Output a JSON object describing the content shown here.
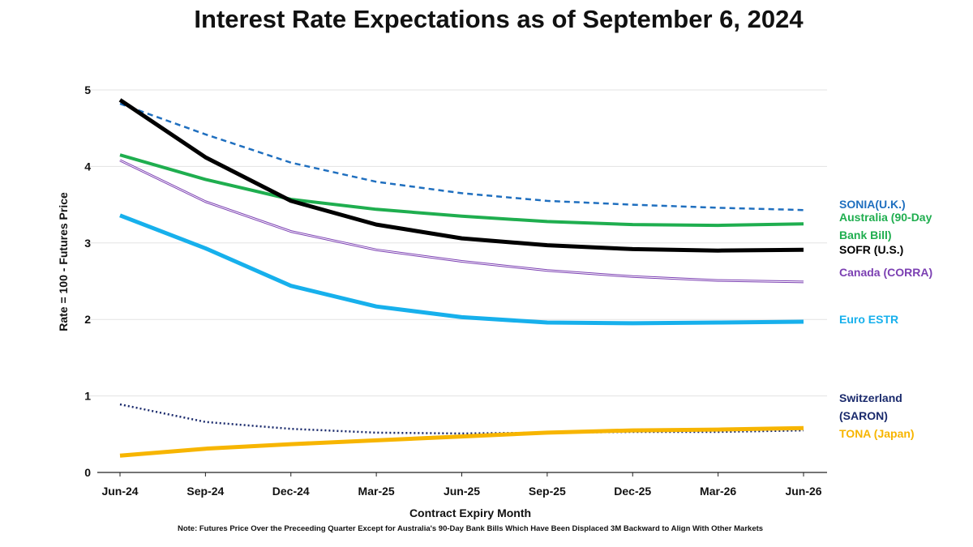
{
  "chart_data": {
    "type": "line",
    "title": "Interest Rate Expectations as of September 6, 2024",
    "xlabel": "Contract Expiry Month",
    "ylabel": "Rate = 100 - Futures Price",
    "note": "Note: Futures Price Over the Preceeding Quarter Except for Australia's 90-Day Bank Bills Which Have Been Displaced 3M Backward to Align With Other Markets",
    "categories": [
      "Jun-24",
      "Sep-24",
      "Dec-24",
      "Mar-25",
      "Jun-25",
      "Sep-25",
      "Dec-25",
      "Mar-26",
      "Jun-26"
    ],
    "ylim": [
      0,
      5
    ],
    "yticks": [
      "0",
      "1",
      "2",
      "3",
      "4",
      "5"
    ],
    "grid": true,
    "series": [
      {
        "name": "SONIA(U.K.)",
        "label_lines": [
          "SONIA(U.K.)"
        ],
        "color": "#1f6fbf",
        "style": "dashed",
        "width": 2.5,
        "values": [
          4.82,
          4.42,
          4.05,
          3.8,
          3.65,
          3.55,
          3.5,
          3.46,
          3.43
        ]
      },
      {
        "name": "Australia (90-Day Bank Bill)",
        "label_lines": [
          "Australia (90-Day",
          "Bank Bill)"
        ],
        "color": "#1fae4f",
        "style": "solid",
        "width": 4,
        "values": [
          4.15,
          3.83,
          3.57,
          3.44,
          3.35,
          3.28,
          3.24,
          3.23,
          3.25
        ]
      },
      {
        "name": "SOFR (U.S.)",
        "label_lines": [
          "SOFR (U.S.)"
        ],
        "color": "#000000",
        "style": "solid",
        "width": 5,
        "values": [
          4.87,
          4.12,
          3.55,
          3.24,
          3.06,
          2.97,
          2.92,
          2.9,
          2.91
        ]
      },
      {
        "name": "Canada (CORRA)",
        "label_lines": [
          "Canada (CORRA)"
        ],
        "color": "#7b3fb2",
        "style": "double",
        "width": 3,
        "values": [
          4.08,
          3.54,
          3.15,
          2.91,
          2.76,
          2.64,
          2.56,
          2.51,
          2.49
        ]
      },
      {
        "name": "Euro ESTR",
        "label_lines": [
          "Euro ESTR"
        ],
        "color": "#17b0ec",
        "style": "solid",
        "width": 5,
        "values": [
          3.36,
          2.93,
          2.44,
          2.17,
          2.03,
          1.96,
          1.95,
          1.96,
          1.97
        ]
      },
      {
        "name": "Switzerland (SARON)",
        "label_lines": [
          "Switzerland",
          "(SARON)"
        ],
        "color": "#1a2a6c",
        "style": "dotted",
        "width": 2.5,
        "values": [
          0.89,
          0.66,
          0.57,
          0.52,
          0.51,
          0.52,
          0.53,
          0.53,
          0.55
        ]
      },
      {
        "name": "TONA (Japan)",
        "label_lines": [
          "TONA (Japan)"
        ],
        "color": "#f7b500",
        "style": "solid",
        "width": 5,
        "values": [
          0.22,
          0.31,
          0.37,
          0.42,
          0.47,
          0.52,
          0.55,
          0.56,
          0.58
        ]
      }
    ]
  }
}
